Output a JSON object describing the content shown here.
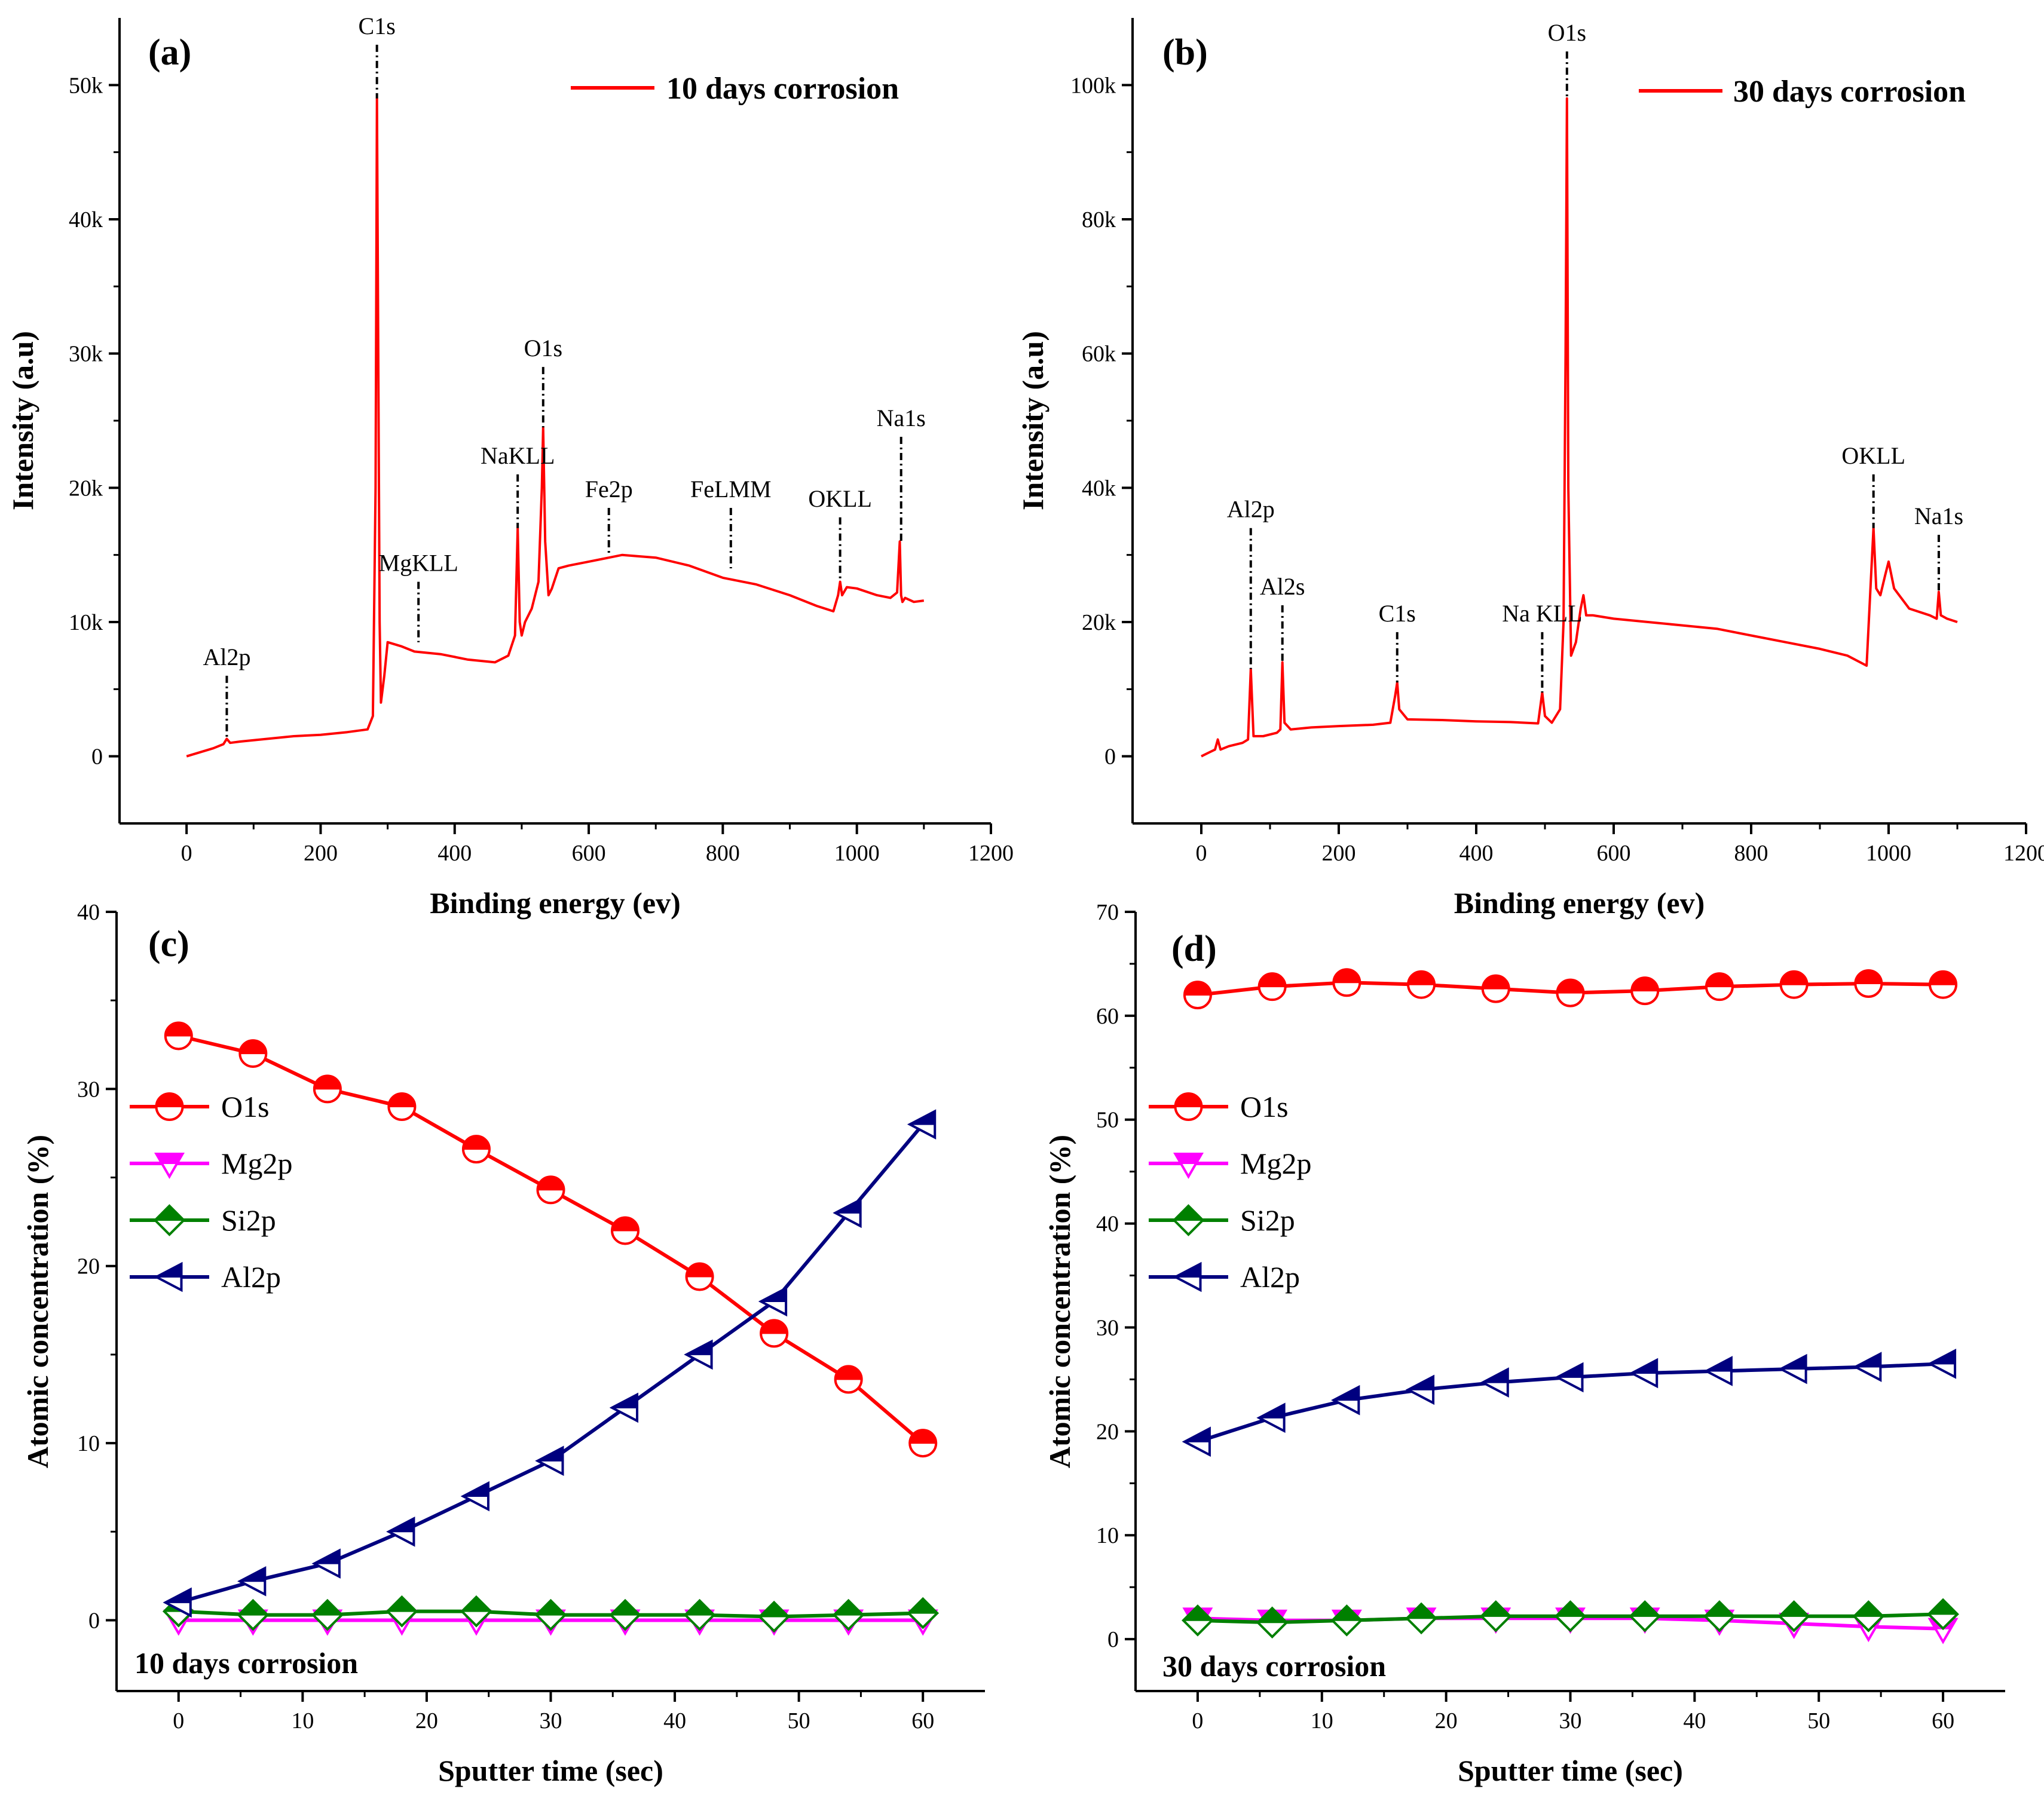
{
  "chart_data": [
    {
      "id": "a",
      "type": "line",
      "panel_label": "(a)",
      "xlabel": "Binding energy (ev)",
      "ylabel": "Intensity (a.u)",
      "xlim": [
        -100,
        1200
      ],
      "ylim": [
        -5000,
        55000
      ],
      "xticks": [
        0,
        200,
        400,
        600,
        800,
        1000,
        1200
      ],
      "xtick_labels": [
        "0",
        "200",
        "400",
        "600",
        "800",
        "1000",
        "1200"
      ],
      "yticks": [
        0,
        10000,
        20000,
        30000,
        40000,
        50000
      ],
      "ytick_labels": [
        "0",
        "10k",
        "20k",
        "30k",
        "40k",
        "50k"
      ],
      "legend_position": "top-right",
      "series": [
        {
          "name": "10 days corrosion",
          "color": "#ff0000",
          "x": [
            0,
            20,
            40,
            55,
            60,
            65,
            80,
            120,
            160,
            200,
            240,
            270,
            278,
            282,
            284,
            286,
            288,
            290,
            295,
            300,
            320,
            340,
            380,
            420,
            460,
            480,
            490,
            494,
            497,
            500,
            505,
            515,
            525,
            530,
            532,
            535,
            540,
            545,
            555,
            570,
            600,
            650,
            700,
            750,
            800,
            850,
            900,
            940,
            965,
            972,
            975,
            978,
            985,
            1000,
            1030,
            1050,
            1060,
            1064,
            1066,
            1068,
            1072,
            1085,
            1100
          ],
          "y": [
            0,
            300,
            600,
            900,
            1300,
            1000,
            1100,
            1300,
            1500,
            1600,
            1800,
            2000,
            3000,
            20000,
            49000,
            30000,
            10000,
            4000,
            6000,
            8500,
            8200,
            7800,
            7600,
            7200,
            7000,
            7500,
            9000,
            17000,
            10000,
            9000,
            10000,
            11000,
            13000,
            20000,
            24500,
            16000,
            12000,
            12500,
            14000,
            14200,
            14500,
            15000,
            14800,
            14200,
            13300,
            12800,
            12000,
            11200,
            10800,
            12000,
            13000,
            12000,
            12600,
            12500,
            12000,
            11800,
            12200,
            16000,
            12000,
            11500,
            11800,
            11500,
            11600
          ]
        }
      ],
      "peaks": [
        {
          "label": "Al2p",
          "x": 60,
          "y_top": 6000,
          "y_bottom": 1300
        },
        {
          "label": "C1s",
          "x": 284,
          "y_top": 53000,
          "y_bottom": 49000
        },
        {
          "label": "MgKLL",
          "x": 346,
          "y_top": 13000,
          "y_bottom": 8500
        },
        {
          "label": "NaKLL",
          "x": 494,
          "y_top": 21000,
          "y_bottom": 17000
        },
        {
          "label": "O1s",
          "x": 532,
          "y_top": 29000,
          "y_bottom": 24500
        },
        {
          "label": "Fe2p",
          "x": 630,
          "y_top": 18500,
          "y_bottom": 15000
        },
        {
          "label": "FeLMM",
          "x": 812,
          "y_top": 18500,
          "y_bottom": 14000
        },
        {
          "label": "OKLL",
          "x": 975,
          "y_top": 17800,
          "y_bottom": 13000
        },
        {
          "label": "Na1s",
          "x": 1066,
          "y_top": 23800,
          "y_bottom": 16000
        }
      ]
    },
    {
      "id": "b",
      "type": "line",
      "panel_label": "(b)",
      "xlabel": "Binding energy (ev)",
      "ylabel": "Intensity (a.u)",
      "xlim": [
        -100,
        1200
      ],
      "ylim": [
        -10000,
        110000
      ],
      "xticks": [
        0,
        200,
        400,
        600,
        800,
        1000,
        1200
      ],
      "xtick_labels": [
        "0",
        "200",
        "400",
        "600",
        "800",
        "1000",
        "1200"
      ],
      "yticks": [
        0,
        20000,
        40000,
        60000,
        80000,
        100000
      ],
      "ytick_labels": [
        "0",
        "20k",
        "40k",
        "60k",
        "80k",
        "100k"
      ],
      "legend_position": "top-right",
      "series": [
        {
          "name": "30 days corrosion",
          "color": "#ff0000",
          "x": [
            0,
            10,
            20,
            24,
            28,
            40,
            60,
            68,
            72,
            76,
            90,
            110,
            115,
            118,
            121,
            130,
            160,
            200,
            250,
            275,
            282,
            285,
            288,
            300,
            350,
            400,
            450,
            490,
            496,
            500,
            510,
            522,
            527,
            530,
            532,
            534,
            538,
            545,
            552,
            556,
            560,
            570,
            600,
            650,
            700,
            750,
            800,
            850,
            900,
            940,
            968,
            975,
            978,
            982,
            988,
            995,
            1000,
            1008,
            1030,
            1060,
            1070,
            1073,
            1076,
            1085,
            1100
          ],
          "y": [
            0,
            500,
            1000,
            2500,
            1000,
            1500,
            2000,
            2500,
            13000,
            3000,
            3000,
            3500,
            4000,
            14000,
            5000,
            4000,
            4300,
            4500,
            4700,
            5000,
            9000,
            11000,
            7000,
            5500,
            5400,
            5200,
            5100,
            4900,
            9500,
            6000,
            5000,
            7000,
            20000,
            60000,
            98000,
            40000,
            15000,
            17000,
            22000,
            24000,
            21000,
            21000,
            20500,
            20000,
            19500,
            19000,
            18000,
            17000,
            16000,
            15000,
            13500,
            28000,
            34000,
            25000,
            24000,
            27000,
            29000,
            25000,
            22000,
            21000,
            20500,
            24500,
            21000,
            20500,
            20000
          ]
        }
      ],
      "peaks": [
        {
          "label": "Al2p",
          "x": 72,
          "y_top": 34000,
          "y_bottom": 13000
        },
        {
          "label": "Al2s",
          "x": 118,
          "y_top": 22500,
          "y_bottom": 14000
        },
        {
          "label": "C1s",
          "x": 285,
          "y_top": 18500,
          "y_bottom": 11000
        },
        {
          "label": "Na KLL",
          "x": 496,
          "y_top": 18500,
          "y_bottom": 9500
        },
        {
          "label": "O1s",
          "x": 532,
          "y_top": 105000,
          "y_bottom": 98000
        },
        {
          "label": "OKLL",
          "x": 978,
          "y_top": 42000,
          "y_bottom": 34000
        },
        {
          "label": "Na1s",
          "x": 1073,
          "y_top": 33000,
          "y_bottom": 24500
        }
      ]
    },
    {
      "id": "c",
      "type": "line",
      "panel_label": "(c)",
      "xlabel": "Sputter time (sec)",
      "ylabel": "Atomic concentration (%)",
      "xlim": [
        -5,
        65
      ],
      "ylim": [
        -4,
        40
      ],
      "xticks": [
        0,
        10,
        20,
        30,
        40,
        50,
        60
      ],
      "xtick_labels": [
        "0",
        "10",
        "20",
        "30",
        "40",
        "50",
        "60"
      ],
      "yticks": [
        0,
        10,
        20,
        30,
        40
      ],
      "ytick_labels": [
        "0",
        "10",
        "20",
        "30",
        "40"
      ],
      "legend_position": "center-left",
      "annotation": "10 days corrosion",
      "x": [
        0,
        6,
        12,
        18,
        24,
        30,
        36,
        42,
        48,
        54,
        60
      ],
      "series": [
        {
          "name": "O1s",
          "color": "#ff0000",
          "marker": "circle-half",
          "values": [
            33.0,
            32.0,
            30.0,
            29.0,
            26.6,
            24.3,
            22.0,
            19.4,
            16.2,
            13.6,
            10.0
          ]
        },
        {
          "name": "Mg2p",
          "color": "#ff00ff",
          "marker": "triangle-down",
          "values": [
            0.0,
            0.0,
            0.0,
            0.0,
            0.0,
            0.0,
            0.0,
            0.0,
            0.0,
            0.0,
            0.0
          ]
        },
        {
          "name": "Si2p",
          "color": "#008000",
          "marker": "diamond-half",
          "values": [
            0.5,
            0.3,
            0.3,
            0.5,
            0.5,
            0.3,
            0.3,
            0.3,
            0.2,
            0.3,
            0.4
          ]
        },
        {
          "name": "Al2p",
          "color": "#00007f",
          "marker": "triangle-left",
          "values": [
            1.0,
            2.2,
            3.2,
            5.0,
            7.0,
            9.0,
            12.0,
            15.0,
            18.0,
            23.0,
            28.0
          ]
        }
      ]
    },
    {
      "id": "d",
      "type": "line",
      "panel_label": "(d)",
      "xlabel": "Sputter time (sec)",
      "ylabel": "Atomic concentration (%)",
      "xlim": [
        -5,
        65
      ],
      "ylim": [
        -5,
        70
      ],
      "xticks": [
        0,
        10,
        20,
        30,
        40,
        50,
        60
      ],
      "xtick_labels": [
        "0",
        "10",
        "20",
        "30",
        "40",
        "50",
        "60"
      ],
      "yticks": [
        0,
        10,
        20,
        30,
        40,
        50,
        60,
        70
      ],
      "ytick_labels": [
        "0",
        "10",
        "20",
        "30",
        "40",
        "50",
        "60",
        "70"
      ],
      "legend_position": "center-left",
      "annotation": "30 days corrosion",
      "x": [
        0,
        6,
        12,
        18,
        24,
        30,
        36,
        42,
        48,
        54,
        60
      ],
      "series": [
        {
          "name": "O1s",
          "color": "#ff0000",
          "marker": "circle-half",
          "values": [
            62.0,
            62.8,
            63.2,
            63.0,
            62.6,
            62.2,
            62.4,
            62.8,
            63.0,
            63.1,
            63.0
          ]
        },
        {
          "name": "Mg2p",
          "color": "#ff00ff",
          "marker": "triangle-down",
          "values": [
            2.0,
            1.8,
            1.8,
            2.0,
            2.0,
            2.0,
            2.0,
            1.8,
            1.5,
            1.2,
            1.0
          ]
        },
        {
          "name": "Si2p",
          "color": "#008000",
          "marker": "diamond-half",
          "values": [
            1.8,
            1.6,
            1.8,
            2.0,
            2.2,
            2.2,
            2.2,
            2.2,
            2.2,
            2.2,
            2.4
          ]
        },
        {
          "name": "Al2p",
          "color": "#00007f",
          "marker": "triangle-left",
          "values": [
            19.0,
            21.3,
            23.0,
            24.0,
            24.7,
            25.2,
            25.6,
            25.8,
            26.0,
            26.2,
            26.5
          ]
        }
      ]
    }
  ]
}
